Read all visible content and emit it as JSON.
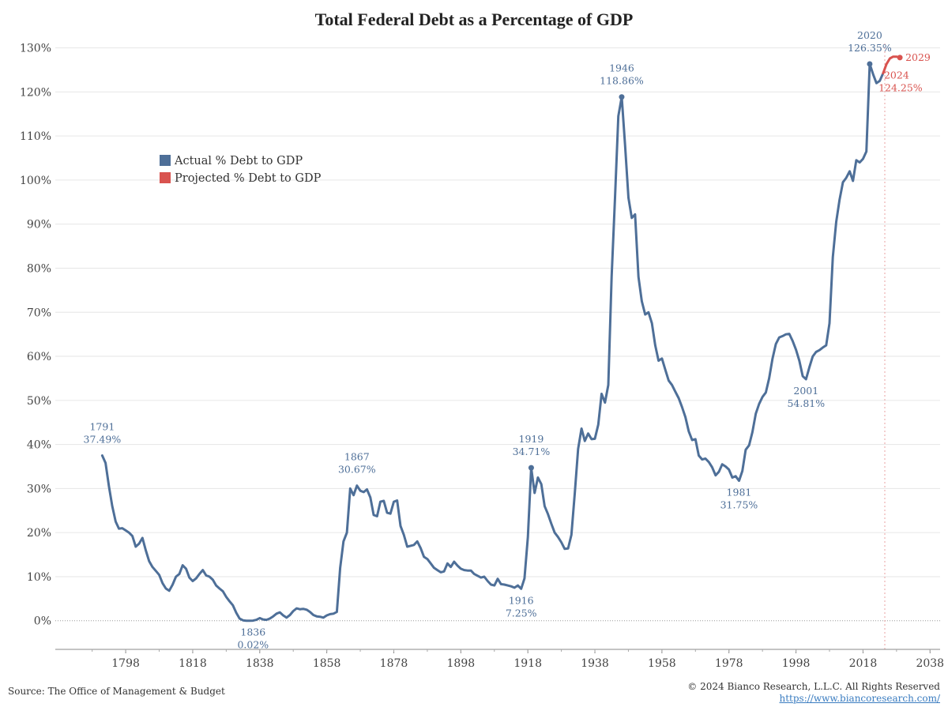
{
  "chart_data": {
    "type": "line",
    "title": "Total Federal Debt as a Percentage of GDP",
    "xlabel": "",
    "ylabel": "",
    "xlim": [
      1777,
      2041
    ],
    "ylim": [
      -6.5,
      131
    ],
    "x_ticks": [
      1798,
      1818,
      1838,
      1858,
      1878,
      1898,
      1918,
      1938,
      1958,
      1978,
      1998,
      2018,
      2038
    ],
    "y_ticks": [
      {
        "value": 0,
        "label": "0%"
      },
      {
        "value": 10,
        "label": "10%"
      },
      {
        "value": 20,
        "label": "20%"
      },
      {
        "value": 30,
        "label": "30%"
      },
      {
        "value": 40,
        "label": "40%"
      },
      {
        "value": 50,
        "label": "50%"
      },
      {
        "value": 60,
        "label": "60%"
      },
      {
        "value": 70,
        "label": "70%"
      },
      {
        "value": 80,
        "label": "80%"
      },
      {
        "value": 90,
        "label": "90%"
      },
      {
        "value": 100,
        "label": "100%"
      },
      {
        "value": 110,
        "label": "110%"
      },
      {
        "value": 120,
        "label": "120%"
      },
      {
        "value": 130,
        "label": "130%"
      }
    ],
    "grid": true,
    "legend_position": "upper-left",
    "colors": {
      "actual": "#4e6f98",
      "projected": "#d9534f",
      "grid": "#e6e6e6",
      "zero_line": "#999999",
      "divider": "#e8a0a0"
    },
    "divider_x": 2024.5,
    "series": [
      {
        "name": "Actual % Debt to GDP",
        "color": "#4e6f98",
        "points": [
          [
            1791,
            37.49
          ],
          [
            1792,
            35.8
          ],
          [
            1793,
            30.5
          ],
          [
            1794,
            26
          ],
          [
            1795,
            22.5
          ],
          [
            1796,
            20.9
          ],
          [
            1797,
            21
          ],
          [
            1798,
            20.5
          ],
          [
            1799,
            20
          ],
          [
            1800,
            19.2
          ],
          [
            1801,
            16.8
          ],
          [
            1802,
            17.5
          ],
          [
            1803,
            18.8
          ],
          [
            1804,
            16
          ],
          [
            1805,
            13.5
          ],
          [
            1806,
            12.2
          ],
          [
            1807,
            11.3
          ],
          [
            1808,
            10.4
          ],
          [
            1809,
            8.5
          ],
          [
            1810,
            7.3
          ],
          [
            1811,
            6.8
          ],
          [
            1812,
            8.2
          ],
          [
            1813,
            10
          ],
          [
            1814,
            10.6
          ],
          [
            1815,
            12.6
          ],
          [
            1816,
            11.8
          ],
          [
            1817,
            9.8
          ],
          [
            1818,
            9
          ],
          [
            1819,
            9.6
          ],
          [
            1820,
            10.6
          ],
          [
            1821,
            11.5
          ],
          [
            1822,
            10.3
          ],
          [
            1823,
            10
          ],
          [
            1824,
            9.3
          ],
          [
            1825,
            8
          ],
          [
            1826,
            7.3
          ],
          [
            1827,
            6.7
          ],
          [
            1828,
            5.4
          ],
          [
            1829,
            4.4
          ],
          [
            1830,
            3.5
          ],
          [
            1831,
            1.8
          ],
          [
            1832,
            0.5
          ],
          [
            1833,
            0.1
          ],
          [
            1834,
            0
          ],
          [
            1835,
            0
          ],
          [
            1836,
            0.02
          ],
          [
            1837,
            0.2
          ],
          [
            1838,
            0.6
          ],
          [
            1839,
            0.3
          ],
          [
            1840,
            0.2
          ],
          [
            1841,
            0.5
          ],
          [
            1842,
            1
          ],
          [
            1843,
            1.6
          ],
          [
            1844,
            1.9
          ],
          [
            1845,
            1.2
          ],
          [
            1846,
            0.7
          ],
          [
            1847,
            1.3
          ],
          [
            1848,
            2.2
          ],
          [
            1849,
            2.8
          ],
          [
            1850,
            2.6
          ],
          [
            1851,
            2.7
          ],
          [
            1852,
            2.5
          ],
          [
            1853,
            2
          ],
          [
            1854,
            1.3
          ],
          [
            1855,
            1
          ],
          [
            1856,
            0.9
          ],
          [
            1857,
            0.7
          ],
          [
            1858,
            1.2
          ],
          [
            1859,
            1.5
          ],
          [
            1860,
            1.6
          ],
          [
            1861,
            2
          ],
          [
            1862,
            12
          ],
          [
            1863,
            18
          ],
          [
            1864,
            20
          ],
          [
            1865,
            30
          ],
          [
            1866,
            28.5
          ],
          [
            1867,
            30.67
          ],
          [
            1868,
            29.5
          ],
          [
            1869,
            29.2
          ],
          [
            1870,
            29.8
          ],
          [
            1871,
            28
          ],
          [
            1872,
            24
          ],
          [
            1873,
            23.7
          ],
          [
            1874,
            27
          ],
          [
            1875,
            27.2
          ],
          [
            1876,
            24.5
          ],
          [
            1877,
            24.3
          ],
          [
            1878,
            27
          ],
          [
            1879,
            27.3
          ],
          [
            1880,
            21.5
          ],
          [
            1881,
            19.5
          ],
          [
            1882,
            16.8
          ],
          [
            1883,
            17
          ],
          [
            1884,
            17.2
          ],
          [
            1885,
            18
          ],
          [
            1886,
            16.5
          ],
          [
            1887,
            14.5
          ],
          [
            1888,
            14
          ],
          [
            1889,
            13
          ],
          [
            1890,
            12
          ],
          [
            1891,
            11.5
          ],
          [
            1892,
            11
          ],
          [
            1893,
            11.2
          ],
          [
            1894,
            13
          ],
          [
            1895,
            12.2
          ],
          [
            1896,
            13.4
          ],
          [
            1897,
            12.5
          ],
          [
            1898,
            11.8
          ],
          [
            1899,
            11.5
          ],
          [
            1900,
            11.4
          ],
          [
            1901,
            11.4
          ],
          [
            1902,
            10.6
          ],
          [
            1903,
            10.2
          ],
          [
            1904,
            9.8
          ],
          [
            1905,
            10
          ],
          [
            1906,
            9
          ],
          [
            1907,
            8.2
          ],
          [
            1908,
            8
          ],
          [
            1909,
            9.5
          ],
          [
            1910,
            8.3
          ],
          [
            1911,
            8.2
          ],
          [
            1912,
            8
          ],
          [
            1913,
            7.8
          ],
          [
            1914,
            7.5
          ],
          [
            1915,
            8
          ],
          [
            1916,
            7.25
          ],
          [
            1917,
            9.6
          ],
          [
            1918,
            19
          ],
          [
            1919,
            34.71
          ],
          [
            1920,
            29
          ],
          [
            1921,
            32.5
          ],
          [
            1922,
            31
          ],
          [
            1923,
            26
          ],
          [
            1924,
            24.2
          ],
          [
            1925,
            22
          ],
          [
            1926,
            20
          ],
          [
            1927,
            19
          ],
          [
            1928,
            17.8
          ],
          [
            1929,
            16.3
          ],
          [
            1930,
            16.4
          ],
          [
            1931,
            19.5
          ],
          [
            1932,
            29
          ],
          [
            1933,
            39
          ],
          [
            1934,
            43.6
          ],
          [
            1935,
            40.8
          ],
          [
            1936,
            42.5
          ],
          [
            1937,
            41.2
          ],
          [
            1938,
            41.3
          ],
          [
            1939,
            44.5
          ],
          [
            1940,
            51.5
          ],
          [
            1941,
            49.5
          ],
          [
            1942,
            53.5
          ],
          [
            1943,
            78
          ],
          [
            1944,
            96
          ],
          [
            1945,
            114.5
          ],
          [
            1946,
            118.86
          ],
          [
            1947,
            108
          ],
          [
            1948,
            96
          ],
          [
            1949,
            91.4
          ],
          [
            1950,
            92.2
          ],
          [
            1951,
            78
          ],
          [
            1952,
            72.5
          ],
          [
            1953,
            69.5
          ],
          [
            1954,
            70
          ],
          [
            1955,
            67.5
          ],
          [
            1956,
            62.5
          ],
          [
            1957,
            59
          ],
          [
            1958,
            59.5
          ],
          [
            1959,
            57
          ],
          [
            1960,
            54.5
          ],
          [
            1961,
            53.5
          ],
          [
            1962,
            52
          ],
          [
            1963,
            50.5
          ],
          [
            1964,
            48.5
          ],
          [
            1965,
            46.2
          ],
          [
            1966,
            43
          ],
          [
            1967,
            41
          ],
          [
            1968,
            41.2
          ],
          [
            1969,
            37.5
          ],
          [
            1970,
            36.6
          ],
          [
            1971,
            36.8
          ],
          [
            1972,
            36
          ],
          [
            1973,
            34.8
          ],
          [
            1974,
            33
          ],
          [
            1975,
            33.8
          ],
          [
            1976,
            35.5
          ],
          [
            1977,
            35
          ],
          [
            1978,
            34.3
          ],
          [
            1979,
            32.5
          ],
          [
            1980,
            32.8
          ],
          [
            1981,
            31.75
          ],
          [
            1982,
            34
          ],
          [
            1983,
            38.8
          ],
          [
            1984,
            39.8
          ],
          [
            1985,
            42.8
          ],
          [
            1986,
            47
          ],
          [
            1987,
            49.2
          ],
          [
            1988,
            50.8
          ],
          [
            1989,
            51.8
          ],
          [
            1990,
            55
          ],
          [
            1991,
            59.5
          ],
          [
            1992,
            62.8
          ],
          [
            1993,
            64.3
          ],
          [
            1994,
            64.6
          ],
          [
            1995,
            65
          ],
          [
            1996,
            65.1
          ],
          [
            1997,
            63.5
          ],
          [
            1998,
            61.5
          ],
          [
            1999,
            59
          ],
          [
            2000,
            55.5
          ],
          [
            2001,
            54.81
          ],
          [
            2002,
            57.5
          ],
          [
            2003,
            60
          ],
          [
            2004,
            61
          ],
          [
            2005,
            61.4
          ],
          [
            2006,
            62
          ],
          [
            2007,
            62.5
          ],
          [
            2008,
            67.5
          ],
          [
            2009,
            82.5
          ],
          [
            2010,
            90.5
          ],
          [
            2011,
            95.5
          ],
          [
            2012,
            99.5
          ],
          [
            2013,
            100.5
          ],
          [
            2014,
            102
          ],
          [
            2015,
            99.8
          ],
          [
            2016,
            104.5
          ],
          [
            2017,
            104
          ],
          [
            2018,
            104.8
          ],
          [
            2019,
            106.5
          ],
          [
            2020,
            126.35
          ],
          [
            2021,
            124
          ],
          [
            2022,
            122
          ],
          [
            2023,
            122.5
          ],
          [
            2024,
            124.25
          ]
        ]
      },
      {
        "name": "Projected % Debt to GDP",
        "color": "#d9534f",
        "points": [
          [
            2024,
            124.25
          ],
          [
            2025,
            126.3
          ],
          [
            2026,
            127.6
          ],
          [
            2027,
            128
          ],
          [
            2028,
            128
          ],
          [
            2029,
            127.8
          ]
        ]
      }
    ],
    "annotations": [
      {
        "year": "1791",
        "value": "37.49%",
        "x": 1791,
        "y": 37.49,
        "position": "above",
        "color": "#4e6f98"
      },
      {
        "year": "1836",
        "value": "0.02%",
        "x": 1836,
        "y": 0.02,
        "position": "below",
        "color": "#4e6f98"
      },
      {
        "year": "1867",
        "value": "30.67%",
        "x": 1867,
        "y": 30.67,
        "position": "above",
        "color": "#4e6f98"
      },
      {
        "year": "1916",
        "value": "7.25%",
        "x": 1916,
        "y": 7.25,
        "position": "below",
        "color": "#4e6f98"
      },
      {
        "year": "1919",
        "value": "34.71%",
        "x": 1919,
        "y": 34.71,
        "position": "above",
        "color": "#4e6f98",
        "marker": true
      },
      {
        "year": "1946",
        "value": "118.86%",
        "x": 1946,
        "y": 118.86,
        "position": "above",
        "color": "#4e6f98",
        "marker": true
      },
      {
        "year": "1981",
        "value": "31.75%",
        "x": 1981,
        "y": 31.75,
        "position": "below",
        "color": "#4e6f98"
      },
      {
        "year": "2001",
        "value": "54.81%",
        "x": 2001,
        "y": 54.81,
        "position": "below",
        "color": "#4e6f98"
      },
      {
        "year": "2020",
        "value": "126.35%",
        "x": 2020,
        "y": 126.35,
        "position": "above",
        "color": "#4e6f98",
        "marker": true
      },
      {
        "year": "2024",
        "value": "124.25%",
        "x": 2024,
        "y": 124.25,
        "position": "right-below",
        "color": "#d9534f"
      },
      {
        "year": "2029",
        "value": "",
        "x": 2029,
        "y": 127.8,
        "position": "right",
        "color": "#d9534f",
        "marker": true
      }
    ]
  },
  "footer": {
    "source": "Source: The Office of Management & Budget",
    "copyright": "© 2024 Bianco Research, L.L.C. All Rights Reserved",
    "url": "https://www.biancoresearch.com/"
  }
}
